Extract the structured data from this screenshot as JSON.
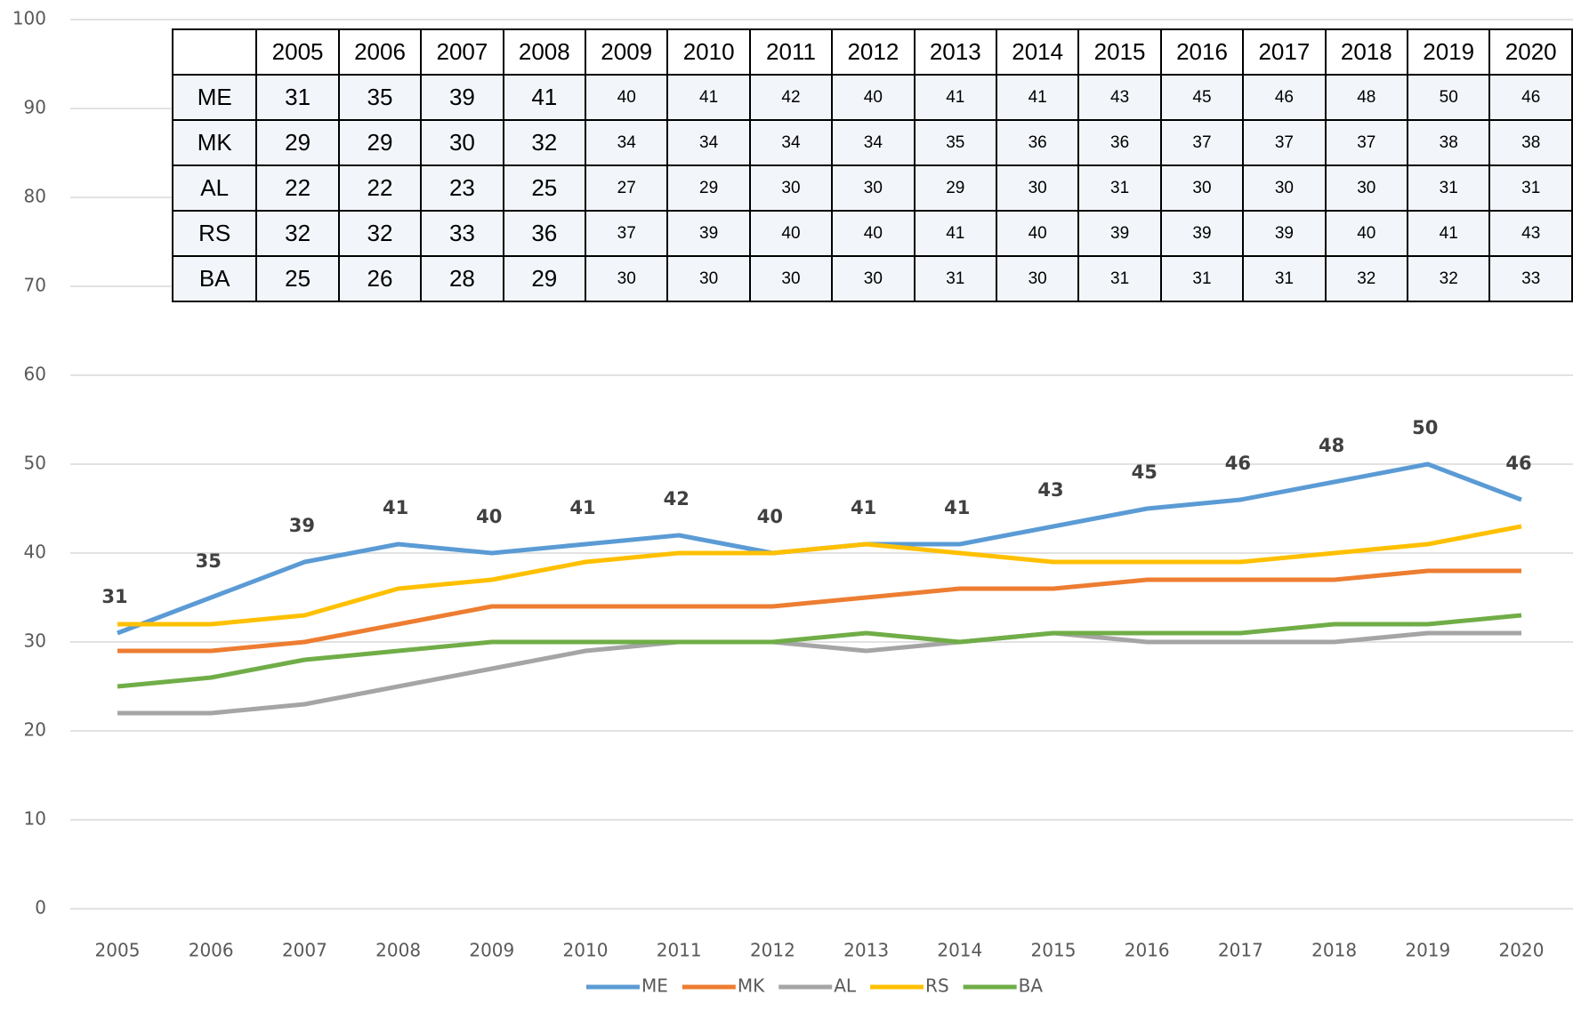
{
  "chart_data": {
    "type": "line",
    "categories": [
      "2005",
      "2006",
      "2007",
      "2008",
      "2009",
      "2010",
      "2011",
      "2012",
      "2013",
      "2014",
      "2015",
      "2016",
      "2017",
      "2018",
      "2019",
      "2020"
    ],
    "series": [
      {
        "name": "ME",
        "color": "#5b9bd5",
        "values": [
          31,
          35,
          39,
          41,
          40,
          41,
          42,
          40,
          41,
          41,
          43,
          45,
          46,
          48,
          50,
          46
        ]
      },
      {
        "name": "MK",
        "color": "#ed7d31",
        "values": [
          29,
          29,
          30,
          32,
          34,
          34,
          34,
          34,
          35,
          36,
          36,
          37,
          37,
          37,
          38,
          38
        ]
      },
      {
        "name": "AL",
        "color": "#a5a5a5",
        "values": [
          22,
          22,
          23,
          25,
          27,
          29,
          30,
          30,
          29,
          30,
          31,
          30,
          30,
          30,
          31,
          31
        ]
      },
      {
        "name": "RS",
        "color": "#ffc000",
        "values": [
          32,
          32,
          33,
          36,
          37,
          39,
          40,
          40,
          41,
          40,
          39,
          39,
          39,
          40,
          41,
          43
        ]
      },
      {
        "name": "BA",
        "color": "#70ad47",
        "values": [
          25,
          26,
          28,
          29,
          30,
          30,
          30,
          30,
          31,
          30,
          31,
          31,
          31,
          32,
          32,
          33
        ]
      }
    ],
    "ylim": [
      0,
      100
    ],
    "yticks": [
      0,
      10,
      20,
      30,
      40,
      50,
      60,
      70,
      80,
      90,
      100
    ],
    "grid": true,
    "data_labels_series": 0,
    "legend": "bottom"
  }
}
